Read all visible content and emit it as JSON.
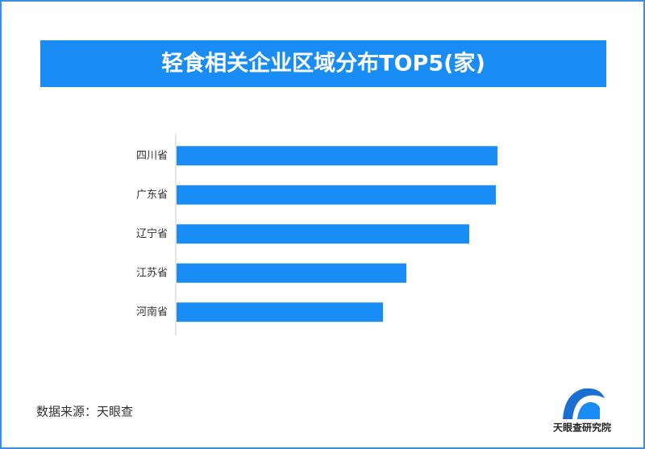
{
  "chart_data": {
    "type": "hbar",
    "title": "轻食相关企业区域分布TOP5(家)",
    "categories": [
      "四川省",
      "广东省",
      "辽宁省",
      "江苏省",
      "河南省"
    ],
    "values": [
      398,
      396,
      363,
      285,
      256
    ],
    "color": "#1a8cf5",
    "source": "数据来源：天眼查",
    "brand": "天眼查研究院"
  }
}
